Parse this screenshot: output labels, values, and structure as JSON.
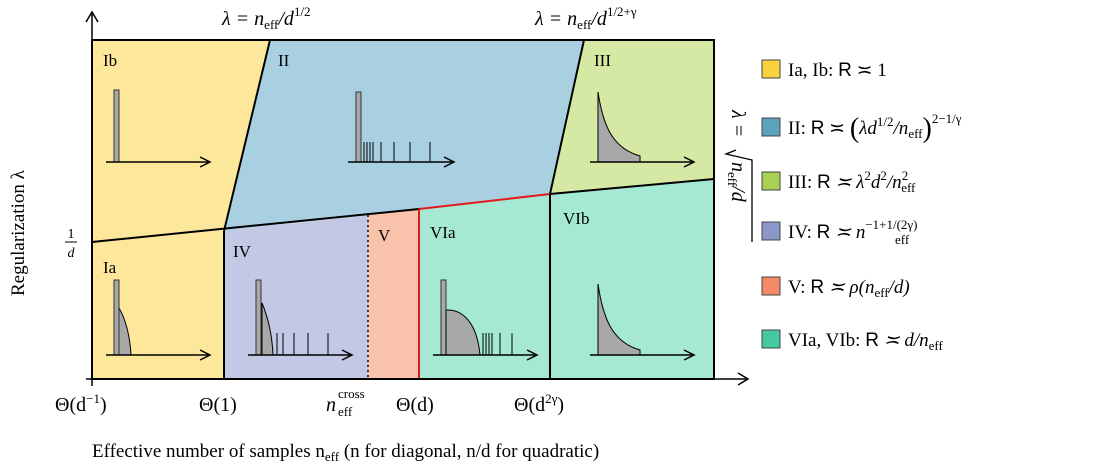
{
  "colors": {
    "yellow": "#fce79a",
    "blue": "#a9d0e1",
    "green": "#d5e9a4",
    "purple": "#c3c9e4",
    "orange": "#f9c2ab",
    "teal": "#a5e8d3",
    "legend_yellow": "#f9d23d",
    "legend_blue": "#5ea3bd",
    "legend_green": "#a9d154",
    "legend_purple": "#8c97c9",
    "legend_orange": "#f48b68",
    "legend_teal": "#44c9a2",
    "red_line": "#e31a1c",
    "hist_gray": "#a8a8a8"
  },
  "diagram": {
    "region_labels": {
      "ib": "Ib",
      "ii": "II",
      "iii": "III",
      "ia": "Ia",
      "iv": "IV",
      "v": "V",
      "via": "VIa",
      "vib": "VIb"
    },
    "top_boundary_labels": {
      "left_prefix": "λ = n",
      "left_sub": "eff",
      "left_mid": "/d",
      "left_sup": "1/2",
      "right_prefix": "λ = n",
      "right_sub": "eff",
      "right_mid": "/d",
      "right_sup": "1/2+γ"
    },
    "right_boundary_label": {
      "prefix": "λ =",
      "radicand_n": "n",
      "radicand_sub": "eff",
      "radicand_tail": "/d"
    },
    "y_axis": {
      "label": "Regularization λ",
      "tick_num": "1",
      "tick_den": "d"
    },
    "x_axis": {
      "label_main": "Effective number of samples n",
      "label_sub": "eff",
      "label_tail": " (n for diagonal, n/d for quadratic)",
      "ticks": {
        "t1": "Θ(d",
        "t1_sup": "−1",
        "t1_close": ")",
        "t2": "Θ(1)",
        "t3_n": "n",
        "t3_sup": "cross",
        "t3_sub": "eff",
        "t4": "Θ(d)",
        "t5": "Θ(d",
        "t5_sup": "2γ",
        "t5_close": ")"
      }
    }
  },
  "legend": {
    "items": [
      {
        "name": "Ia, Ib",
        "head": "Ia, Ib: ",
        "R": "R",
        "rel": " ≍ 1"
      },
      {
        "name": "II",
        "head": "II: ",
        "R": "R",
        "rel": " ≍ "
      },
      {
        "name": "III",
        "head": "III: ",
        "R": "R",
        "rel": " ≍ λ"
      },
      {
        "name": "IV",
        "head": "IV: ",
        "R": "R",
        "rel": " ≍ n"
      },
      {
        "name": "V",
        "head": "V: ",
        "R": "R",
        "rel": " ≍ ρ(n"
      },
      {
        "name": "VIa, VIb",
        "head": "VIa, VIb: ",
        "R": "R",
        "rel": " ≍ d/n"
      }
    ],
    "ii_formula": {
      "inner": "λd",
      "inner_sup": "1/2",
      "slash": "/n",
      "sub": "eff",
      "outer_sup": "2−1/γ"
    },
    "iii_formula": {
      "sup1": "2",
      "d": "d",
      "sup2": "2",
      "slash": "/n",
      "sup3": "2",
      "sub": "eff"
    },
    "iv_formula": {
      "sup": "−1+1/(2γ)",
      "sub": "eff"
    },
    "v_formula": {
      "sub": "eff",
      "tail": "/d)"
    },
    "vi_formula": {
      "sub": "eff"
    }
  }
}
